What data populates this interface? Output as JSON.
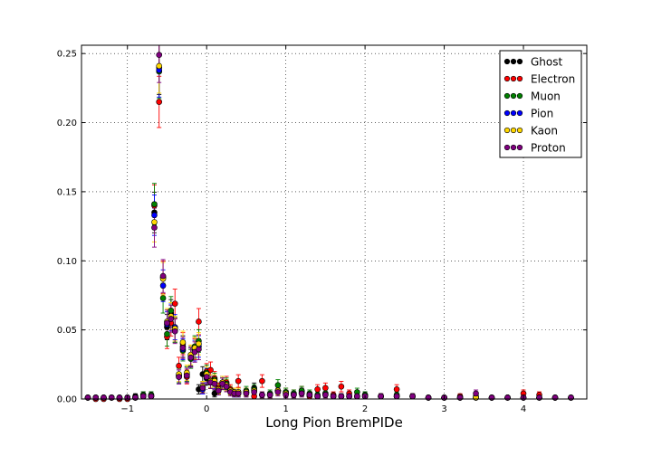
{
  "chart_data": {
    "type": "scatter",
    "title": "",
    "xlabel": "Long Pion BremPIDe",
    "ylabel": "",
    "xlim": [
      -1.58,
      4.8
    ],
    "ylim": [
      0,
      0.256
    ],
    "xticks": [
      -1,
      0,
      1,
      2,
      3,
      4
    ],
    "xtick_labels": [
      "−1",
      "0",
      "1",
      "2",
      "3",
      "4"
    ],
    "yticks": [
      0,
      0.05,
      0.1,
      0.15,
      0.2,
      0.25
    ],
    "ytick_labels": [
      "0.00",
      "0.05",
      "0.10",
      "0.15",
      "0.20",
      "0.25"
    ],
    "grid": true,
    "legend_position": "top-right",
    "error_bars": true,
    "series": [
      {
        "name": "Ghost",
        "color": "#000000",
        "x": [
          -1.5,
          -1.4,
          -1.3,
          -1.2,
          -1.1,
          -1.0,
          -0.9,
          -0.8,
          -0.7,
          -0.66,
          -0.6,
          -0.55,
          -0.5,
          -0.45,
          -0.4,
          -0.35,
          -0.3,
          -0.25,
          -0.2,
          -0.15,
          -0.1,
          -0.05,
          0.0,
          0.05,
          0.1,
          0.15,
          0.2,
          0.25,
          0.3,
          0.35,
          0.4,
          0.5,
          0.6,
          0.7,
          0.8,
          0.9,
          1.0,
          1.1,
          1.2,
          1.3,
          1.4,
          1.5,
          1.6,
          1.7,
          1.8,
          1.9,
          2.0,
          2.2,
          2.4,
          2.6,
          2.8,
          3.0,
          3.2,
          3.4,
          3.6,
          3.8,
          4.0,
          4.2,
          4.4,
          4.6
        ],
        "y": [
          0.001,
          0.001,
          0.001,
          0.001,
          0.001,
          0.001,
          0.002,
          0.003,
          0.003,
          0.135,
          0.24,
          0.088,
          0.052,
          0.062,
          0.05,
          0.017,
          0.038,
          0.018,
          0.031,
          0.037,
          0.007,
          0.018,
          0.015,
          0.012,
          0.004,
          0.008,
          0.012,
          0.01,
          0.006,
          0.005,
          0.005,
          0.004,
          0.008,
          0.003,
          0.003,
          0.006,
          0.004,
          0.003,
          0.005,
          0.003,
          0.002,
          0.004,
          0.002,
          0.002,
          0.002,
          0.002,
          0.003,
          0.002,
          0.002,
          0.002,
          0.001,
          0.001,
          0.001,
          0.001,
          0.001,
          0.001,
          0.001,
          0.001,
          0.001,
          0.001
        ]
      },
      {
        "name": "Electron",
        "color": "#ff0000",
        "x": [
          -1.5,
          -1.4,
          -1.3,
          -1.2,
          -1.1,
          -1.0,
          -0.9,
          -0.8,
          -0.7,
          -0.66,
          -0.6,
          -0.55,
          -0.5,
          -0.45,
          -0.4,
          -0.35,
          -0.3,
          -0.25,
          -0.2,
          -0.15,
          -0.1,
          -0.05,
          0.0,
          0.05,
          0.1,
          0.15,
          0.2,
          0.25,
          0.3,
          0.35,
          0.4,
          0.5,
          0.6,
          0.7,
          0.8,
          0.9,
          1.0,
          1.1,
          1.2,
          1.3,
          1.4,
          1.5,
          1.6,
          1.7,
          1.8,
          1.9,
          2.0,
          2.2,
          2.4,
          2.6,
          2.8,
          3.0,
          3.2,
          3.4,
          3.6,
          3.8,
          4.0,
          4.2,
          4.4,
          4.6
        ],
        "y": [
          0.001,
          0.0,
          0.0,
          0.001,
          0.0,
          0.0,
          0.001,
          0.002,
          0.002,
          0.14,
          0.215,
          0.088,
          0.045,
          0.055,
          0.069,
          0.024,
          0.04,
          0.016,
          0.03,
          0.036,
          0.056,
          0.008,
          0.02,
          0.021,
          0.015,
          0.008,
          0.011,
          0.012,
          0.007,
          0.005,
          0.013,
          0.005,
          0.002,
          0.013,
          0.003,
          0.006,
          0.005,
          0.004,
          0.006,
          0.002,
          0.007,
          0.008,
          0.003,
          0.009,
          0.004,
          0.002,
          0.002,
          0.002,
          0.007,
          0.002,
          0.001,
          0.001,
          0.002,
          0.001,
          0.001,
          0.001,
          0.004,
          0.003,
          0.001,
          0.001
        ]
      },
      {
        "name": "Muon",
        "color": "#008000",
        "x": [
          -1.5,
          -1.4,
          -1.3,
          -1.2,
          -1.1,
          -1.0,
          -0.9,
          -0.8,
          -0.7,
          -0.66,
          -0.6,
          -0.55,
          -0.5,
          -0.45,
          -0.4,
          -0.35,
          -0.3,
          -0.25,
          -0.2,
          -0.15,
          -0.1,
          -0.05,
          0.0,
          0.05,
          0.1,
          0.15,
          0.2,
          0.25,
          0.3,
          0.35,
          0.4,
          0.5,
          0.6,
          0.7,
          0.8,
          0.9,
          1.0,
          1.1,
          1.2,
          1.3,
          1.4,
          1.5,
          1.6,
          1.7,
          1.8,
          1.9,
          2.0,
          2.2,
          2.4,
          2.6,
          2.8,
          3.0,
          3.2,
          3.4,
          3.6,
          3.8,
          4.0,
          4.2,
          4.4,
          4.6
        ],
        "y": [
          0.001,
          0.001,
          0.001,
          0.001,
          0.001,
          0.001,
          0.001,
          0.003,
          0.003,
          0.141,
          0.237,
          0.073,
          0.047,
          0.064,
          0.05,
          0.017,
          0.035,
          0.018,
          0.029,
          0.038,
          0.042,
          0.008,
          0.019,
          0.012,
          0.014,
          0.007,
          0.011,
          0.011,
          0.006,
          0.004,
          0.004,
          0.006,
          0.007,
          0.003,
          0.004,
          0.01,
          0.005,
          0.004,
          0.006,
          0.004,
          0.003,
          0.004,
          0.002,
          0.002,
          0.002,
          0.005,
          0.003,
          0.002,
          0.003,
          0.002,
          0.001,
          0.001,
          0.001,
          0.002,
          0.001,
          0.001,
          0.001,
          0.001,
          0.001,
          0.001
        ]
      },
      {
        "name": "Pion",
        "color": "#0000ff",
        "x": [
          -1.5,
          -1.4,
          -1.3,
          -1.2,
          -1.1,
          -1.0,
          -0.9,
          -0.8,
          -0.7,
          -0.66,
          -0.6,
          -0.55,
          -0.5,
          -0.45,
          -0.4,
          -0.35,
          -0.3,
          -0.25,
          -0.2,
          -0.15,
          -0.1,
          -0.05,
          0.0,
          0.05,
          0.1,
          0.15,
          0.2,
          0.25,
          0.3,
          0.35,
          0.4,
          0.5,
          0.6,
          0.7,
          0.8,
          0.9,
          1.0,
          1.1,
          1.2,
          1.3,
          1.4,
          1.5,
          1.6,
          1.7,
          1.8,
          1.9,
          2.0,
          2.2,
          2.4,
          2.6,
          2.8,
          3.0,
          3.2,
          3.4,
          3.6,
          3.8,
          4.0,
          4.2,
          4.4,
          4.6
        ],
        "y": [
          0.001,
          0.001,
          0.001,
          0.001,
          0.001,
          0.001,
          0.001,
          0.002,
          0.002,
          0.133,
          0.238,
          0.082,
          0.054,
          0.059,
          0.052,
          0.016,
          0.036,
          0.017,
          0.03,
          0.035,
          0.038,
          0.007,
          0.017,
          0.013,
          0.012,
          0.006,
          0.012,
          0.009,
          0.006,
          0.004,
          0.004,
          0.005,
          0.006,
          0.003,
          0.003,
          0.006,
          0.004,
          0.003,
          0.004,
          0.003,
          0.002,
          0.003,
          0.002,
          0.002,
          0.002,
          0.002,
          0.002,
          0.002,
          0.002,
          0.002,
          0.001,
          0.001,
          0.001,
          0.001,
          0.001,
          0.001,
          0.001,
          0.001,
          0.001,
          0.001
        ]
      },
      {
        "name": "Kaon",
        "color": "#ffd700",
        "x": [
          -1.5,
          -1.4,
          -1.3,
          -1.2,
          -1.1,
          -1.0,
          -0.9,
          -0.8,
          -0.7,
          -0.66,
          -0.6,
          -0.55,
          -0.5,
          -0.45,
          -0.4,
          -0.35,
          -0.3,
          -0.25,
          -0.2,
          -0.15,
          -0.1,
          -0.05,
          0.0,
          0.05,
          0.1,
          0.15,
          0.2,
          0.25,
          0.3,
          0.35,
          0.4,
          0.5,
          0.6,
          0.7,
          0.8,
          0.9,
          1.0,
          1.1,
          1.2,
          1.3,
          1.4,
          1.5,
          1.6,
          1.7,
          1.8,
          1.9,
          2.0,
          2.2,
          2.4,
          2.6,
          2.8,
          3.0,
          3.2,
          3.4,
          3.6,
          3.8,
          4.0,
          4.2,
          4.4,
          4.6
        ],
        "y": [
          0.001,
          0.001,
          0.001,
          0.001,
          0.001,
          0.001,
          0.001,
          0.002,
          0.002,
          0.128,
          0.241,
          0.087,
          0.056,
          0.06,
          0.051,
          0.018,
          0.041,
          0.019,
          0.032,
          0.037,
          0.04,
          0.009,
          0.018,
          0.013,
          0.013,
          0.007,
          0.012,
          0.01,
          0.006,
          0.005,
          0.005,
          0.005,
          0.006,
          0.003,
          0.003,
          0.006,
          0.004,
          0.003,
          0.004,
          0.003,
          0.002,
          0.003,
          0.002,
          0.002,
          0.002,
          0.002,
          0.002,
          0.002,
          0.002,
          0.002,
          0.001,
          0.001,
          0.001,
          0.001,
          0.001,
          0.001,
          0.001,
          0.001,
          0.001,
          0.001
        ]
      },
      {
        "name": "Proton",
        "color": "#800080",
        "x": [
          -1.5,
          -1.4,
          -1.3,
          -1.2,
          -1.1,
          -1.0,
          -0.9,
          -0.8,
          -0.7,
          -0.66,
          -0.6,
          -0.55,
          -0.5,
          -0.45,
          -0.4,
          -0.35,
          -0.3,
          -0.25,
          -0.2,
          -0.15,
          -0.1,
          -0.05,
          0.0,
          0.05,
          0.1,
          0.15,
          0.2,
          0.25,
          0.3,
          0.35,
          0.4,
          0.5,
          0.6,
          0.7,
          0.8,
          0.9,
          1.0,
          1.1,
          1.2,
          1.3,
          1.4,
          1.5,
          1.6,
          1.7,
          1.8,
          1.9,
          2.0,
          2.2,
          2.4,
          2.6,
          2.8,
          3.0,
          3.2,
          3.4,
          3.6,
          3.8,
          4.0,
          4.2,
          4.4,
          4.6
        ],
        "y": [
          0.001,
          0.001,
          0.001,
          0.001,
          0.001,
          0.001,
          0.001,
          0.002,
          0.002,
          0.124,
          0.249,
          0.089,
          0.055,
          0.058,
          0.049,
          0.016,
          0.037,
          0.017,
          0.03,
          0.034,
          0.036,
          0.008,
          0.016,
          0.012,
          0.011,
          0.006,
          0.011,
          0.009,
          0.005,
          0.004,
          0.004,
          0.004,
          0.005,
          0.003,
          0.003,
          0.005,
          0.003,
          0.003,
          0.004,
          0.003,
          0.002,
          0.003,
          0.002,
          0.002,
          0.002,
          0.002,
          0.002,
          0.002,
          0.002,
          0.002,
          0.001,
          0.001,
          0.001,
          0.004,
          0.001,
          0.001,
          0.001,
          0.001,
          0.001,
          0.001
        ]
      }
    ]
  }
}
